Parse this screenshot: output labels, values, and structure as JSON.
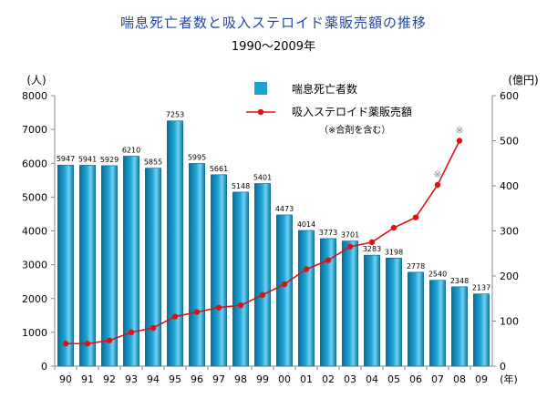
{
  "chart_data": {
    "type": "bar+line",
    "title": "喘息死亡者数と吸入ステロイド薬販売額の推移",
    "subtitle": "1990～2009年",
    "categories": [
      "90",
      "91",
      "92",
      "93",
      "94",
      "95",
      "96",
      "97",
      "98",
      "99",
      "00",
      "01",
      "02",
      "03",
      "04",
      "05",
      "06",
      "07",
      "08",
      "09"
    ],
    "x_unit_label": "(年)",
    "y_left": {
      "unit_label": "(人)",
      "ylim": [
        0,
        8000
      ],
      "ticks": [
        "0",
        "1000",
        "2000",
        "3000",
        "4000",
        "5000",
        "6000",
        "7000",
        "8000"
      ]
    },
    "y_right": {
      "unit_label": "(億円)",
      "ylim": [
        0,
        600
      ],
      "ticks": [
        "0",
        "100",
        "200",
        "300",
        "400",
        "500",
        "600"
      ]
    },
    "grid": false,
    "legend_position": "top-center",
    "series": [
      {
        "name": "喘息死亡者数",
        "kind": "bar",
        "axis": "left",
        "color": "#1da3d4",
        "values": [
          5947,
          5941,
          5929,
          6210,
          5855,
          7253,
          5995,
          5661,
          5148,
          5401,
          4473,
          4014,
          3773,
          3701,
          3283,
          3198,
          2778,
          2540,
          2348,
          2137
        ],
        "data_labels": [
          "5947",
          "5941",
          "5929",
          "6210",
          "5855",
          "7253",
          "5995",
          "5661",
          "5148",
          "5401",
          "4473",
          "4014",
          "3773",
          "3701",
          "3283",
          "3198",
          "2778",
          "2540",
          "2348",
          "2137"
        ]
      },
      {
        "name": "吸入ステロイド薬販売額",
        "kind": "line",
        "axis": "right",
        "color": "#e01010",
        "values": [
          50,
          50,
          57,
          75,
          85,
          110,
          120,
          130,
          135,
          158,
          182,
          215,
          235,
          265,
          275,
          307,
          330,
          402,
          500,
          null
        ]
      }
    ],
    "legend_note": "（※合剤を含む）",
    "annotations": [
      {
        "text": "※",
        "x": "07"
      },
      {
        "text": "※",
        "x": "08"
      }
    ]
  }
}
